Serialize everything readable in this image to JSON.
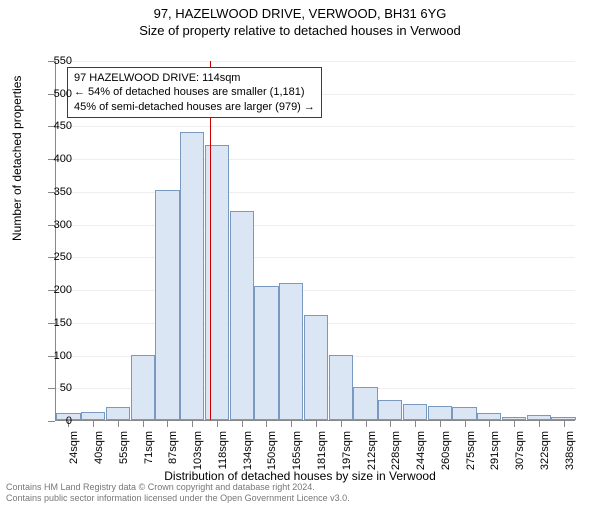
{
  "titles": {
    "main": "97, HAZELWOOD DRIVE, VERWOOD, BH31 6YG",
    "sub": "Size of property relative to detached houses in Verwood",
    "y_axis": "Number of detached properties",
    "x_axis": "Distribution of detached houses by size in Verwood"
  },
  "annotation": {
    "line1": "97 HAZELWOOD DRIVE: 114sqm",
    "line2": "← 54% of detached houses are smaller (1,181)",
    "line3": "45% of semi-detached houses are larger (979) →"
  },
  "footer": {
    "line1": "Contains HM Land Registry data © Crown copyright and database right 2024.",
    "line2": "Contains public sector information licensed under the Open Government Licence v3.0."
  },
  "chart": {
    "type": "histogram",
    "y_min": 0,
    "y_max": 550,
    "y_tick_step": 50,
    "x_labels": [
      "24sqm",
      "40sqm",
      "55sqm",
      "71sqm",
      "87sqm",
      "103sqm",
      "118sqm",
      "134sqm",
      "150sqm",
      "165sqm",
      "181sqm",
      "197sqm",
      "212sqm",
      "228sqm",
      "244sqm",
      "260sqm",
      "275sqm",
      "291sqm",
      "307sqm",
      "322sqm",
      "338sqm"
    ],
    "values": [
      10,
      12,
      20,
      100,
      352,
      440,
      420,
      320,
      205,
      210,
      160,
      100,
      50,
      30,
      25,
      22,
      20,
      10,
      5,
      8,
      5
    ],
    "marker_x_value": 114,
    "x_min": 24,
    "x_step": 16,
    "bar_fill": "#dbe6f4",
    "bar_stroke": "#7a99c0",
    "marker_color": "#cc0000",
    "grid_color": "#eeeeee",
    "axis_color": "#888888"
  }
}
